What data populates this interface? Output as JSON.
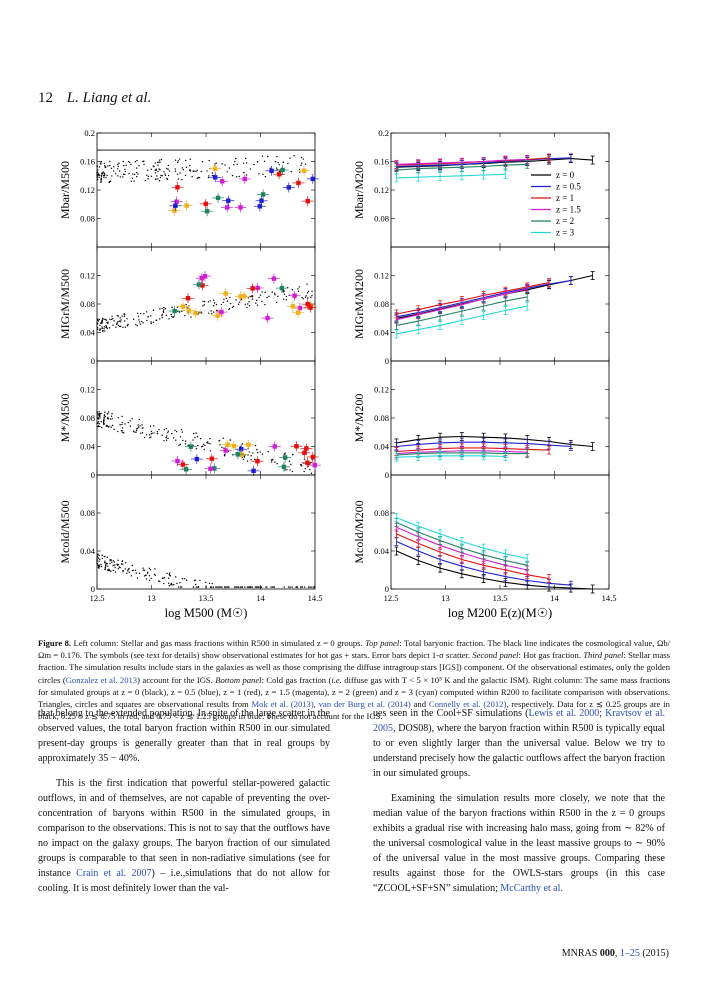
{
  "header": {
    "page_number": "12",
    "authors": "L. Liang et al."
  },
  "figure": {
    "left_column": {
      "xlabel": "log M500 (M☉)",
      "xticks": [
        "12.5",
        "13",
        "13.5",
        "14",
        "14.5"
      ],
      "panels": [
        {
          "ylabel": "Mbar/M500",
          "yticks": [
            "0.08",
            "0.12",
            "0.16",
            "0.2"
          ],
          "ymin": 0.04,
          "ymax": 0.2,
          "hline": 0.176
        },
        {
          "ylabel": "MIGrM/M500",
          "yticks": [
            "0",
            "0.04",
            "0.08",
            "0.12"
          ],
          "ymin": 0,
          "ymax": 0.16
        },
        {
          "ylabel": "M*/M500",
          "yticks": [
            "0",
            "0.04",
            "0.08",
            "0.12"
          ],
          "ymin": 0,
          "ymax": 0.16
        },
        {
          "ylabel": "Mcold/M500",
          "yticks": [
            "0",
            "0.04",
            "0.08"
          ],
          "ymin": 0,
          "ymax": 0.12
        }
      ]
    },
    "right_column": {
      "xlabel": "log M200 E(z)(M☉)",
      "xticks": [
        "12.5",
        "13",
        "13.5",
        "14",
        "14.5"
      ],
      "panels": [
        {
          "ylabel": "Mbar/M200",
          "yticks": [
            "0.08",
            "0.12",
            "0.16",
            "0.2"
          ],
          "ymin": 0.04,
          "ymax": 0.2
        },
        {
          "ylabel": "MIGrM/M200",
          "yticks": [
            "0",
            "0.04",
            "0.08",
            "0.12"
          ],
          "ymin": 0,
          "ymax": 0.16
        },
        {
          "ylabel": "M*/M200",
          "yticks": [
            "0",
            "0.04",
            "0.08",
            "0.12"
          ],
          "ymin": 0,
          "ymax": 0.16
        },
        {
          "ylabel": "Mcold/M200",
          "yticks": [
            "0",
            "0.04",
            "0.08"
          ],
          "ymin": 0,
          "ymax": 0.12
        }
      ],
      "legend": [
        {
          "label": "z = 0",
          "color": "#000000"
        },
        {
          "label": "z = 0.5",
          "color": "#1f1fd0"
        },
        {
          "label": "z = 1",
          "color": "#e01010"
        },
        {
          "label": "z = 1.5",
          "color": "#d020d0"
        },
        {
          "label": "z = 2",
          "color": "#208060"
        },
        {
          "label": "z = 3",
          "color": "#20d8d8"
        }
      ]
    }
  },
  "chart_data": [
    {
      "type": "line",
      "title": "",
      "xlabel": "log M200 E(z)(M☉)",
      "ylabel": "Mbar/M200",
      "xlim": [
        12.5,
        14.5
      ],
      "ylim": [
        0.04,
        0.2
      ],
      "x": [
        12.55,
        12.75,
        12.95,
        13.15,
        13.35,
        13.55,
        13.75,
        13.95,
        14.15,
        14.35
      ],
      "series": [
        {
          "name": "z = 0",
          "values": [
            0.152,
            0.153,
            0.154,
            0.156,
            0.157,
            0.159,
            0.16,
            0.162,
            0.164,
            0.162
          ]
        },
        {
          "name": "z = 0.5",
          "values": [
            0.153,
            0.154,
            0.155,
            0.156,
            0.158,
            0.16,
            0.162,
            0.164,
            0.165,
            null
          ]
        },
        {
          "name": "z = 1",
          "values": [
            0.155,
            0.156,
            0.157,
            0.158,
            0.16,
            0.161,
            0.163,
            0.165,
            null,
            null
          ]
        },
        {
          "name": "z = 1.5",
          "values": [
            0.156,
            0.157,
            0.158,
            0.159,
            0.16,
            0.162,
            0.163,
            null,
            null,
            null
          ]
        },
        {
          "name": "z = 2",
          "values": [
            0.148,
            0.15,
            0.151,
            0.152,
            0.153,
            0.155,
            0.156,
            null,
            null,
            null
          ]
        },
        {
          "name": "z = 3",
          "values": [
            0.137,
            0.138,
            0.139,
            0.14,
            0.141,
            0.142,
            null,
            null,
            null,
            null
          ]
        }
      ]
    },
    {
      "type": "line",
      "xlabel": "log M200 E(z)(M☉)",
      "ylabel": "MIGrM/M200",
      "xlim": [
        12.5,
        14.5
      ],
      "ylim": [
        0,
        0.16
      ],
      "x": [
        12.55,
        12.75,
        12.95,
        13.15,
        13.35,
        13.55,
        13.75,
        13.95,
        14.15,
        14.35
      ],
      "series": [
        {
          "name": "z = 0",
          "values": [
            0.06,
            0.066,
            0.073,
            0.08,
            0.087,
            0.094,
            0.1,
            0.107,
            0.113,
            0.12
          ]
        },
        {
          "name": "z = 0.5",
          "values": [
            0.062,
            0.068,
            0.075,
            0.082,
            0.089,
            0.096,
            0.102,
            0.108,
            0.113,
            null
          ]
        },
        {
          "name": "z = 1",
          "values": [
            0.066,
            0.072,
            0.079,
            0.085,
            0.092,
            0.098,
            0.104,
            0.11,
            null,
            null
          ]
        },
        {
          "name": "z = 1.5",
          "values": [
            0.058,
            0.065,
            0.072,
            0.079,
            0.087,
            0.094,
            0.101,
            null,
            null,
            null
          ]
        },
        {
          "name": "z = 2",
          "values": [
            0.05,
            0.056,
            0.063,
            0.07,
            0.077,
            0.084,
            0.09,
            null,
            null,
            null
          ]
        },
        {
          "name": "z = 3",
          "values": [
            0.038,
            0.044,
            0.05,
            0.057,
            0.064,
            0.071,
            0.077,
            null,
            null,
            null
          ]
        }
      ]
    },
    {
      "type": "line",
      "xlabel": "log M200 E(z)(M☉)",
      "ylabel": "M*/M200",
      "xlim": [
        12.5,
        14.5
      ],
      "ylim": [
        0,
        0.16
      ],
      "x": [
        12.55,
        12.75,
        12.95,
        13.15,
        13.35,
        13.55,
        13.75,
        13.95,
        14.15,
        14.35
      ],
      "series": [
        {
          "name": "z = 0",
          "values": [
            0.045,
            0.05,
            0.053,
            0.054,
            0.053,
            0.052,
            0.05,
            0.047,
            0.043,
            0.04
          ]
        },
        {
          "name": "z = 0.5",
          "values": [
            0.04,
            0.043,
            0.045,
            0.046,
            0.046,
            0.045,
            0.044,
            0.042,
            0.04,
            null
          ]
        },
        {
          "name": "z = 1",
          "values": [
            0.033,
            0.035,
            0.037,
            0.038,
            0.038,
            0.037,
            0.036,
            0.035,
            null,
            null
          ]
        },
        {
          "name": "z = 1.5",
          "values": [
            0.03,
            0.032,
            0.033,
            0.034,
            0.034,
            0.033,
            0.032,
            null,
            null,
            null
          ]
        },
        {
          "name": "z = 2",
          "values": [
            0.028,
            0.03,
            0.031,
            0.031,
            0.031,
            0.03,
            0.03,
            null,
            null,
            null
          ]
        },
        {
          "name": "z = 3",
          "values": [
            0.025,
            0.026,
            0.027,
            0.027,
            0.027,
            0.026,
            null,
            null,
            null,
            null
          ]
        }
      ]
    },
    {
      "type": "line",
      "xlabel": "log M200 E(z)(M☉)",
      "ylabel": "Mcold/M200",
      "xlim": [
        12.5,
        14.5
      ],
      "ylim": [
        0,
        0.12
      ],
      "x": [
        12.55,
        12.75,
        12.95,
        13.15,
        13.35,
        13.55,
        13.75,
        13.95,
        14.15,
        14.35
      ],
      "series": [
        {
          "name": "z = 0",
          "values": [
            0.04,
            0.03,
            0.022,
            0.016,
            0.011,
            0.007,
            0.004,
            0.002,
            0.001,
            0.0
          ]
        },
        {
          "name": "z = 0.5",
          "values": [
            0.05,
            0.04,
            0.031,
            0.024,
            0.018,
            0.013,
            0.009,
            0.006,
            0.004,
            null
          ]
        },
        {
          "name": "z = 1",
          "values": [
            0.058,
            0.048,
            0.039,
            0.031,
            0.025,
            0.02,
            0.015,
            0.011,
            null,
            null
          ]
        },
        {
          "name": "z = 1.5",
          "values": [
            0.065,
            0.055,
            0.046,
            0.038,
            0.031,
            0.025,
            0.02,
            null,
            null,
            null
          ]
        },
        {
          "name": "z = 2",
          "values": [
            0.07,
            0.06,
            0.051,
            0.043,
            0.036,
            0.03,
            0.025,
            null,
            null,
            null
          ]
        },
        {
          "name": "z = 3",
          "values": [
            0.075,
            0.066,
            0.058,
            0.05,
            0.043,
            0.037,
            0.032,
            null,
            null,
            null
          ]
        }
      ]
    }
  ],
  "caption": {
    "fig_label": "Figure 8.",
    "text_1": " Left column: Stellar and gas mass fractions within R500 in simulated z = 0 groups. ",
    "top_label": "Top panel",
    "text_2": ": Total baryonic fraction. The black line indicates the cosmological value, Ωb/Ωm = 0.176. The symbols (see text for details) show observational estimates for hot gas + stars. Error bars depict 1-σ scatter. ",
    "second_label": "Second panel",
    "text_3": ": Hot gas fraction. ",
    "third_label": "Third panel",
    "text_4": ": Stellar mass fraction. The simulation results include stars in the galaxies as well as those comprising the diffuse intragroup stars [IGS]) component. Of the observational estimates, only the golden circles (",
    "cite_1": "Gonzalez et al. 2013",
    "text_5": ") account for the IGS. ",
    "bottom_label": "Bottom panel",
    "text_6": ": Cold gas fraction (",
    "ie": "i.e.",
    "text_7": " diffuse gas with T < 5 × 10⁵ K and the galactic ISM). Right column: The same mass fractions for simulated groups at z = 0 (black), z = 0.5 (blue), z = 1 (red), z = 1.5 (magenta), z = 2 (green) and z = 3 (cyan) computed within R200 to facilitate comparison with observations. Triangles, circles and squares are observational results from ",
    "cite_2": "Mok et al. (2013)",
    "text_8": ", ",
    "cite_3": "van der Burg et al. (2014)",
    "text_9": " and ",
    "cite_4": "Connelly et al. (2012)",
    "text_10": ", respectively. Data for z ≲ 0.25 groups are in black, 0.25 < z ≲ 0.75 in red, and 0.75 < z ≲ 1.25 groups in blue. These do not account for the IGS."
  },
  "body": {
    "left_p1": "that belong to the extended population. In spite of the large scatter in the observed values, the total baryon fraction within R500 in our simulated present-day groups is generally greater than that in real groups by approximately 35 − 40%.",
    "left_p2a": "This is the first indication that powerful stellar-powered galactic outflows, in and of themselves, are not capable of preventing the over-concentration of baryons within R500 in the simulated groups, in comparison to the observations. This is not to say that the outflows have no impact on the galaxy groups. The baryon fraction of our simulated groups is comparable to that seen in non-radiative simulations (see for instance ",
    "left_cite": "Crain et al. 2007",
    "left_p2b": ") – i.e.,simulations that do not allow for cooling. It is most definitely lower than the val-",
    "right_p1a": "ues seen in the Cool+SF simulations (",
    "right_cite1": "Lewis et al. 2000",
    "right_sep": "; ",
    "right_cite2": "Kravtsov et al. 2005",
    "right_p1b": ", DOS08), where the baryon fraction within R500 is typically equal to or even slightly larger than the universal value. Below we try to understand precisely how the galactic outflows affect the baryon fraction in our simulated groups.",
    "right_p2a": "Examining the simulation results more closely, we note that the median value of the baryon fractions within R500 in the z = 0 groups exhibits a gradual rise with increasing halo mass, going from ∼ 82% of the universal cosmological value in the least massive groups to ∼ 90% of the universal value in the most massive groups. Comparing these results against those for the OWLS-stars groups (in this case “ZCOOL+SF+SN” simulation; ",
    "right_cite3": "McCarthy et al.",
    "right_p2b": ""
  },
  "footer": {
    "journal": "MNRAS ",
    "volume": "000",
    "pages": "1–25",
    "year": " (2015)"
  }
}
